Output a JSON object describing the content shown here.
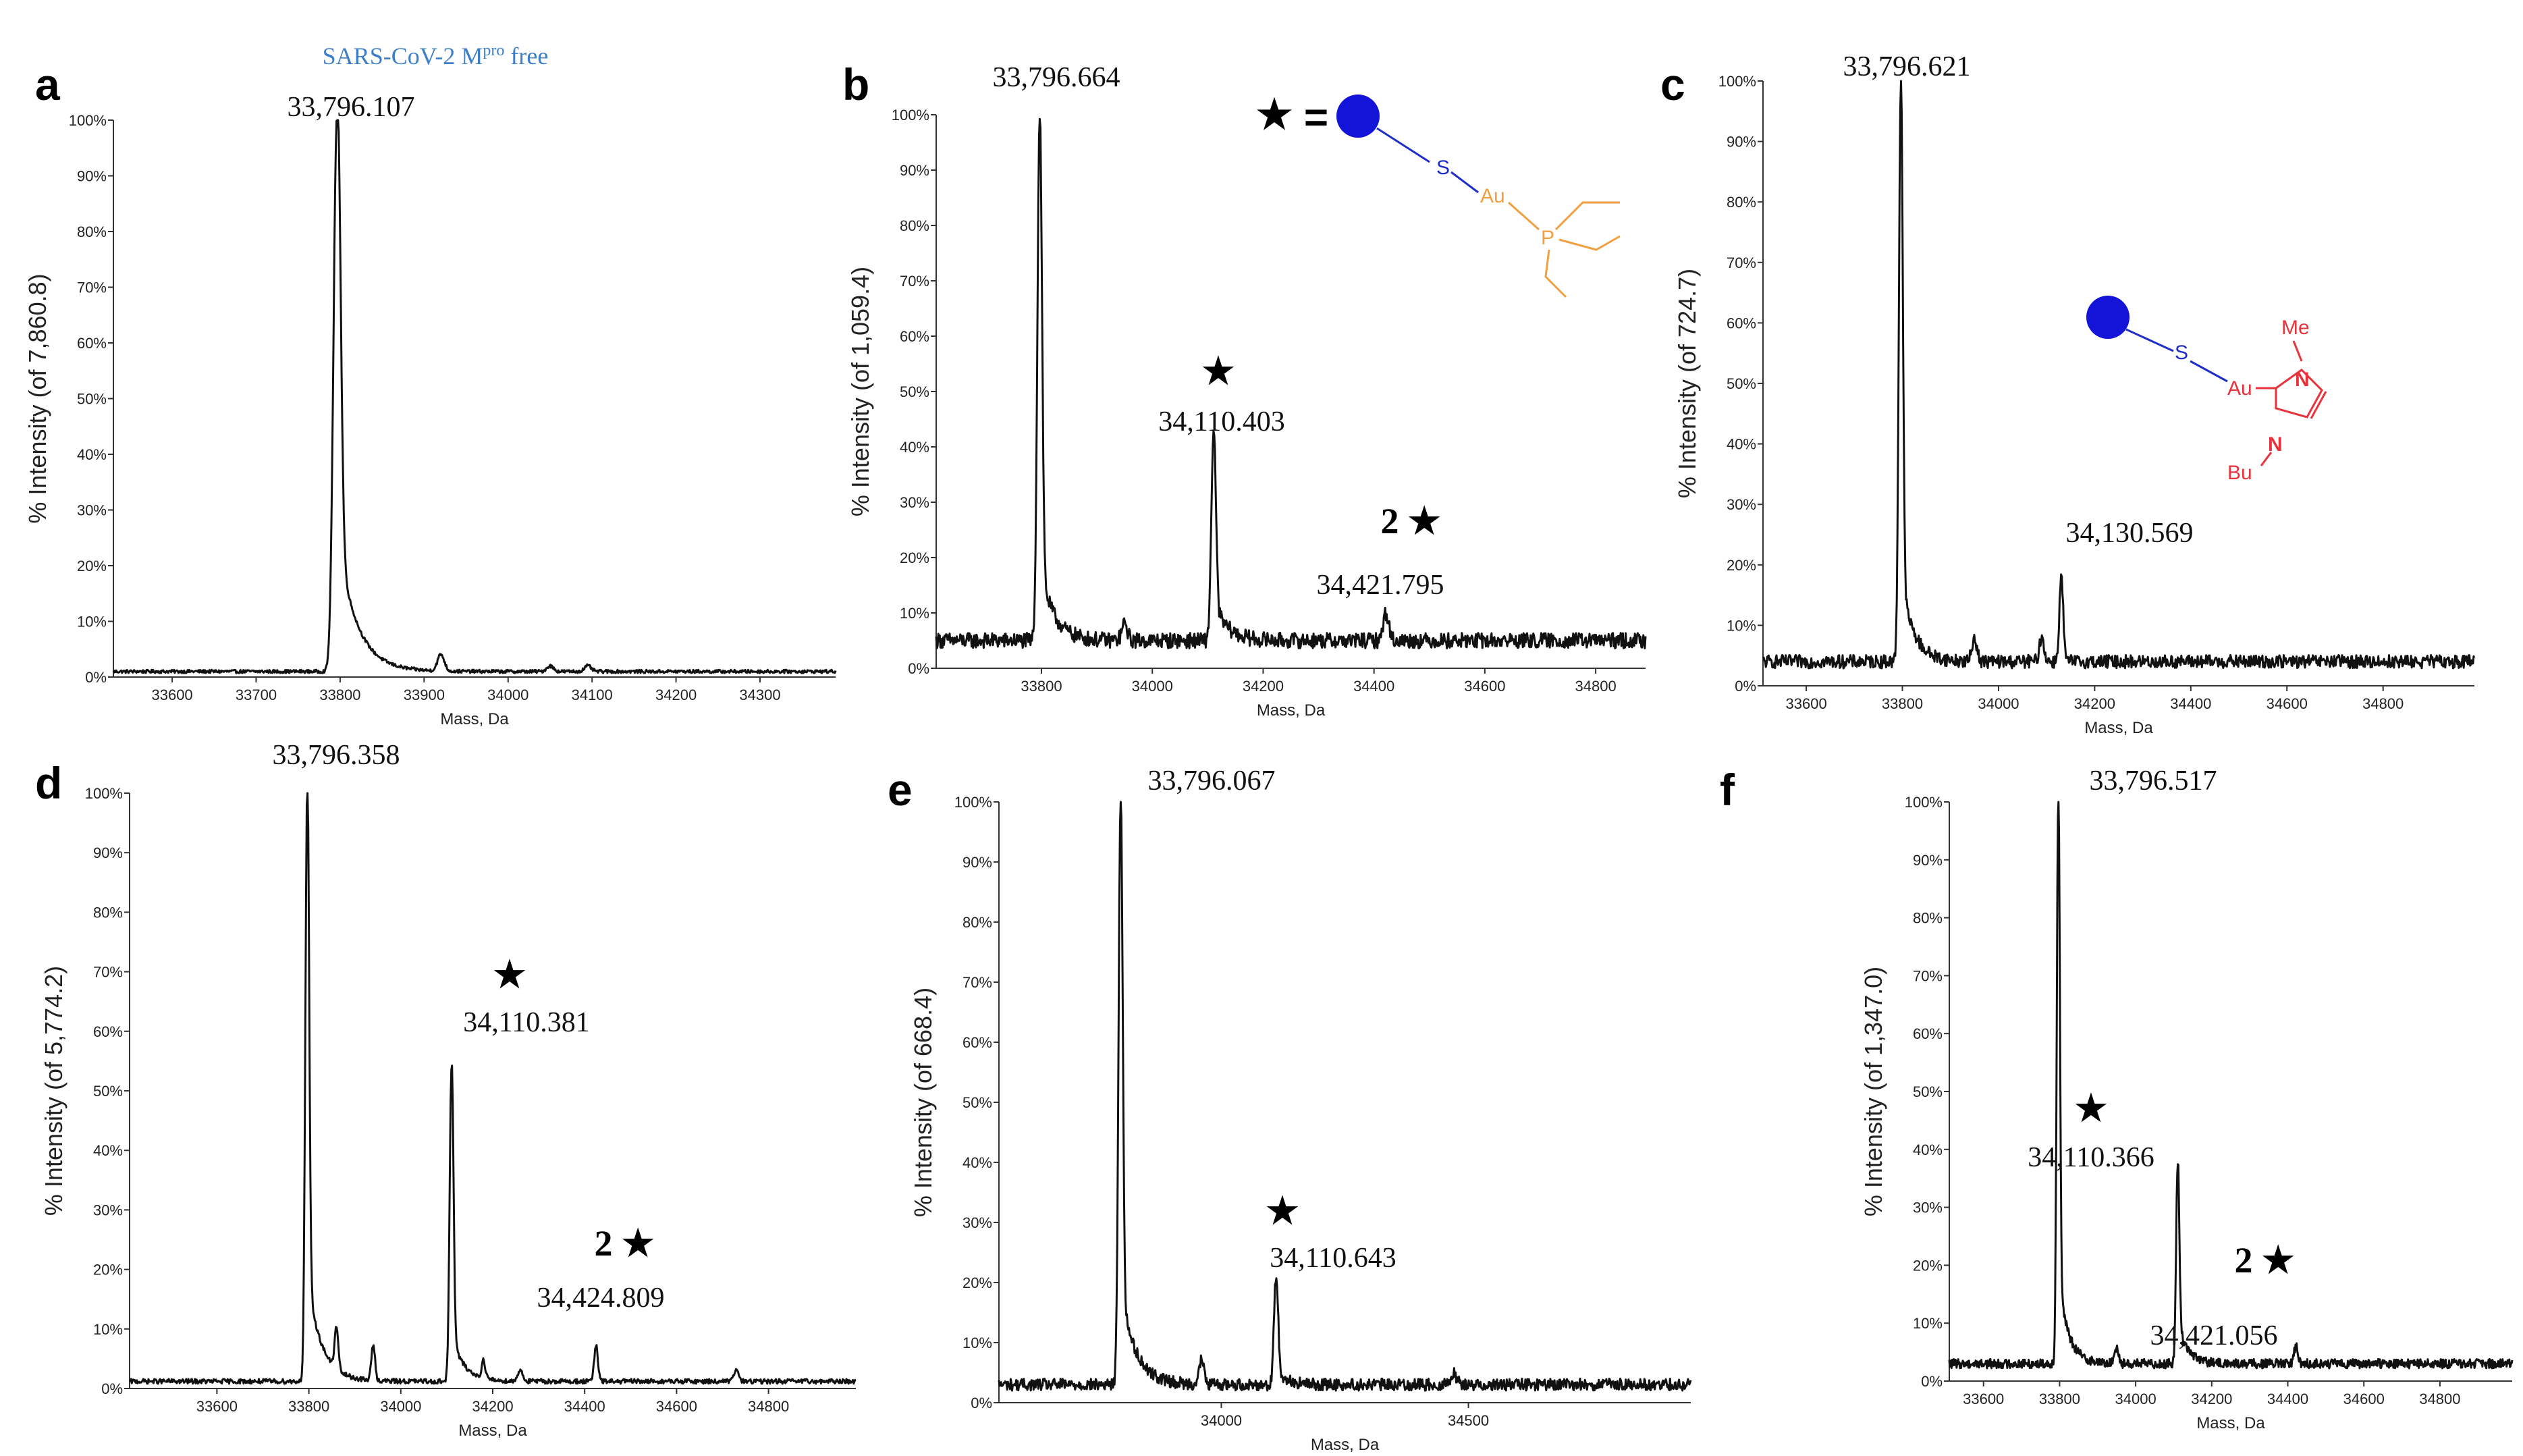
{
  "figure": {
    "xlabel": "Mass, Da",
    "trace_color": "#111111",
    "axis_color": "#333333",
    "structure_blue": "#1f2ec9",
    "phosphine_orange": "#f0a040",
    "nhc_red": "#e8323c",
    "title_blue": "#3d7ec8"
  },
  "structures": {
    "equals_star": "★",
    "equals_sign": "=",
    "phosphine": {
      "s": "S",
      "au": "Au",
      "p": "P"
    },
    "nhc": {
      "s": "S",
      "au": "Au",
      "n1": "N",
      "n2": "N",
      "me": "Me",
      "bu": "Bu"
    }
  },
  "chart_data": [
    {
      "panel": "a",
      "type": "line",
      "title": "SARS-CoV-2 Mpro free",
      "title_main": "SARS-CoV-2 M",
      "title_sup": "pro",
      "title_tail": " free",
      "xlabel": "Mass, Da",
      "ylabel": "% Intensity (of 7,860.8)",
      "xlim": [
        33530,
        34390
      ],
      "ylim": [
        0,
        100
      ],
      "xticks": [
        33600,
        33700,
        33800,
        33900,
        34000,
        34100,
        34200,
        34300
      ],
      "yticks": [
        0,
        10,
        20,
        30,
        40,
        50,
        60,
        70,
        80,
        90,
        100
      ],
      "baseline": 1,
      "noise": 0.3,
      "peaks": [
        {
          "x": 33796.107,
          "y": 99,
          "w": 4,
          "tail": [
            26,
            22
          ],
          "label": "33,796.107",
          "star": ""
        },
        {
          "x": 33920,
          "y": 3,
          "w": 4
        },
        {
          "x": 34050,
          "y": 1,
          "w": 4
        },
        {
          "x": 34095,
          "y": 1,
          "w": 4
        }
      ]
    },
    {
      "panel": "b",
      "type": "line",
      "title": "",
      "xlabel": "Mass, Da",
      "ylabel": "% Intensity (of 1,059.4)",
      "xlim": [
        33610,
        34890
      ],
      "ylim": [
        0,
        100
      ],
      "xticks": [
        33800,
        34000,
        34200,
        34400,
        34600,
        34800
      ],
      "yticks": [
        0,
        10,
        20,
        30,
        40,
        50,
        60,
        70,
        80,
        90,
        100
      ],
      "baseline": 5,
      "noise": 1.4,
      "peaks": [
        {
          "x": 33796.664,
          "y": 94,
          "w": 4,
          "tail": [
            14,
            24
          ],
          "label": "33,796.664",
          "star": ""
        },
        {
          "x": 33950,
          "y": 3,
          "w": 5
        },
        {
          "x": 34110.403,
          "y": 37,
          "w": 4,
          "tail": [
            7,
            24
          ],
          "label": "34,110.403",
          "star": "★"
        },
        {
          "x": 34421.795,
          "y": 5,
          "w": 5,
          "label": "34,421.795",
          "star": "2 ★"
        }
      ]
    },
    {
      "panel": "c",
      "type": "line",
      "title": "",
      "xlabel": "Mass, Da",
      "ylabel": "% Intensity (of 724.7)",
      "xlim": [
        33510,
        34990
      ],
      "ylim": [
        0,
        100
      ],
      "xticks": [
        33600,
        33800,
        34000,
        34200,
        34400,
        34600,
        34800
      ],
      "yticks": [
        0,
        10,
        20,
        30,
        40,
        50,
        60,
        70,
        80,
        90,
        100
      ],
      "baseline": 4,
      "noise": 1.1,
      "peaks": [
        {
          "x": 33796.621,
          "y": 95,
          "w": 4,
          "tail": [
            14,
            26
          ],
          "label": "33,796.621",
          "star": ""
        },
        {
          "x": 33950,
          "y": 4,
          "w": 5
        },
        {
          "x": 34090,
          "y": 4,
          "w": 5
        },
        {
          "x": 34130.569,
          "y": 14,
          "w": 4,
          "label": "34,130.569",
          "star": ""
        }
      ]
    },
    {
      "panel": "d",
      "type": "line",
      "title": "",
      "xlabel": "Mass, Da",
      "ylabel": "% Intensity (of 5,774.2)",
      "xlim": [
        33410,
        34990
      ],
      "ylim": [
        0,
        100
      ],
      "xticks": [
        33600,
        33800,
        34000,
        34200,
        34400,
        34600,
        34800
      ],
      "yticks": [
        0,
        10,
        20,
        30,
        40,
        50,
        60,
        70,
        80,
        90,
        100
      ],
      "baseline": 1.2,
      "noise": 0.4,
      "peaks": [
        {
          "x": 33796.358,
          "y": 99,
          "w": 4,
          "tail": [
            18,
            30
          ],
          "label": "33,796.358",
          "star": ""
        },
        {
          "x": 33860,
          "y": 7,
          "w": 4
        },
        {
          "x": 33940,
          "y": 6,
          "w": 4
        },
        {
          "x": 34110.381,
          "y": 53,
          "w": 4,
          "tail": [
            8,
            26
          ],
          "label": "34,110.381",
          "star": "★"
        },
        {
          "x": 34180,
          "y": 3,
          "w": 4
        },
        {
          "x": 34260,
          "y": 2,
          "w": 5
        },
        {
          "x": 34424.809,
          "y": 6,
          "w": 4,
          "label": "34,424.809",
          "star": "2 ★"
        },
        {
          "x": 34730,
          "y": 2,
          "w": 5
        }
      ]
    },
    {
      "panel": "e",
      "type": "line",
      "title": "",
      "xlabel": "Mass, Da",
      "ylabel": "% Intensity (of 668.4)",
      "xlim": [
        33550,
        34950
      ],
      "ylim": [
        0,
        100
      ],
      "xticks": [
        34000,
        34500
      ],
      "yticks": [
        0,
        10,
        20,
        30,
        40,
        50,
        60,
        70,
        80,
        90,
        100
      ],
      "baseline": 3,
      "noise": 1.0,
      "peaks": [
        {
          "x": 33796.067,
          "y": 97,
          "w": 4,
          "tail": [
            16,
            30
          ],
          "label": "33,796.067",
          "star": ""
        },
        {
          "x": 33960,
          "y": 4,
          "w": 5
        },
        {
          "x": 34110.643,
          "y": 18,
          "w": 4,
          "tail": [
            3,
            18
          ],
          "label": "34,110.643",
          "star": "★"
        },
        {
          "x": 34470,
          "y": 2,
          "w": 6
        }
      ]
    },
    {
      "panel": "f",
      "type": "line",
      "title": "",
      "xlabel": "Mass, Da",
      "ylabel": "% Intensity (of 1,347.0)",
      "xlim": [
        33510,
        34990
      ],
      "ylim": [
        0,
        100
      ],
      "xticks": [
        33600,
        33800,
        34000,
        34200,
        34400,
        34600,
        34800
      ],
      "yticks": [
        0,
        10,
        20,
        30,
        40,
        50,
        60,
        70,
        80,
        90,
        100
      ],
      "baseline": 3,
      "noise": 0.8,
      "peaks": [
        {
          "x": 33796.517,
          "y": 97,
          "w": 4,
          "tail": [
            15,
            26
          ],
          "label": "33,796.517",
          "star": ""
        },
        {
          "x": 33950,
          "y": 3,
          "w": 5
        },
        {
          "x": 34110.366,
          "y": 34,
          "w": 4,
          "tail": [
            8,
            24
          ],
          "label": "34,110.366",
          "star": "★"
        },
        {
          "x": 34421.056,
          "y": 3,
          "w": 5,
          "label": "34,421.056",
          "star": "2 ★"
        }
      ]
    }
  ]
}
